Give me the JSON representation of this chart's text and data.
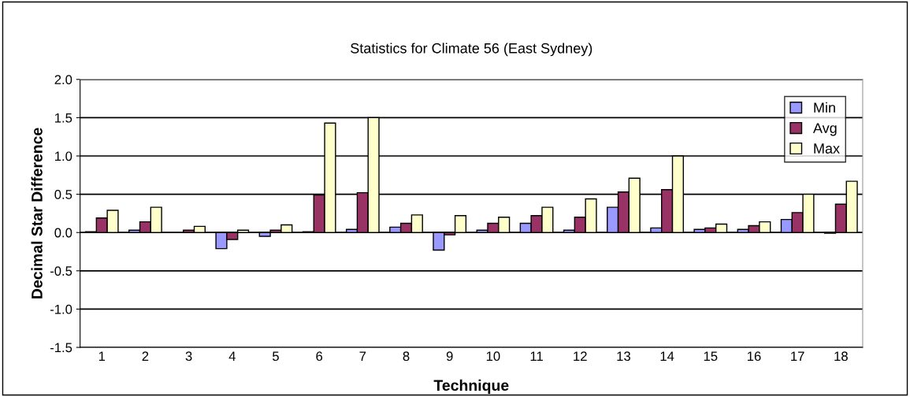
{
  "chart_data": {
    "type": "bar",
    "title": "Statistics for Climate 56 (East Sydney)",
    "xlabel": "Technique",
    "ylabel": "Decimal Star Difference",
    "categories": [
      "1",
      "2",
      "3",
      "4",
      "5",
      "6",
      "7",
      "8",
      "9",
      "10",
      "11",
      "12",
      "13",
      "14",
      "15",
      "16",
      "17",
      "18"
    ],
    "series": [
      {
        "name": "Min",
        "color": "#9999ff",
        "values": [
          0.01,
          0.03,
          null,
          -0.21,
          -0.05,
          0.01,
          0.04,
          0.07,
          -0.23,
          0.03,
          0.12,
          0.03,
          0.33,
          0.06,
          0.04,
          0.04,
          0.17,
          -0.01
        ]
      },
      {
        "name": "Avg",
        "color": "#993366",
        "values": [
          0.19,
          0.14,
          0.03,
          -0.09,
          0.03,
          0.49,
          0.52,
          0.12,
          -0.03,
          0.12,
          0.22,
          0.2,
          0.53,
          0.56,
          0.06,
          0.09,
          0.26,
          0.37
        ]
      },
      {
        "name": "Max",
        "color": "#ffffcc",
        "values": [
          0.29,
          0.33,
          0.08,
          0.03,
          0.1,
          1.43,
          1.5,
          0.23,
          0.22,
          0.2,
          0.33,
          0.44,
          0.71,
          1.0,
          0.11,
          0.14,
          0.5,
          0.67
        ]
      }
    ],
    "ylim": [
      -1.5,
      2.0
    ],
    "yticks": [
      {
        "value": -1.5,
        "label": "-1.5"
      },
      {
        "value": -1.0,
        "label": "-1.0"
      },
      {
        "value": -0.5,
        "label": "-0.5"
      },
      {
        "value": 0.0,
        "label": "0.0"
      },
      {
        "value": 0.5,
        "label": "0.5"
      },
      {
        "value": 1.0,
        "label": "1.0"
      },
      {
        "value": 1.5,
        "label": "1.5"
      },
      {
        "value": 2.0,
        "label": "2.0"
      }
    ],
    "grid": "y",
    "legend": "top right"
  }
}
